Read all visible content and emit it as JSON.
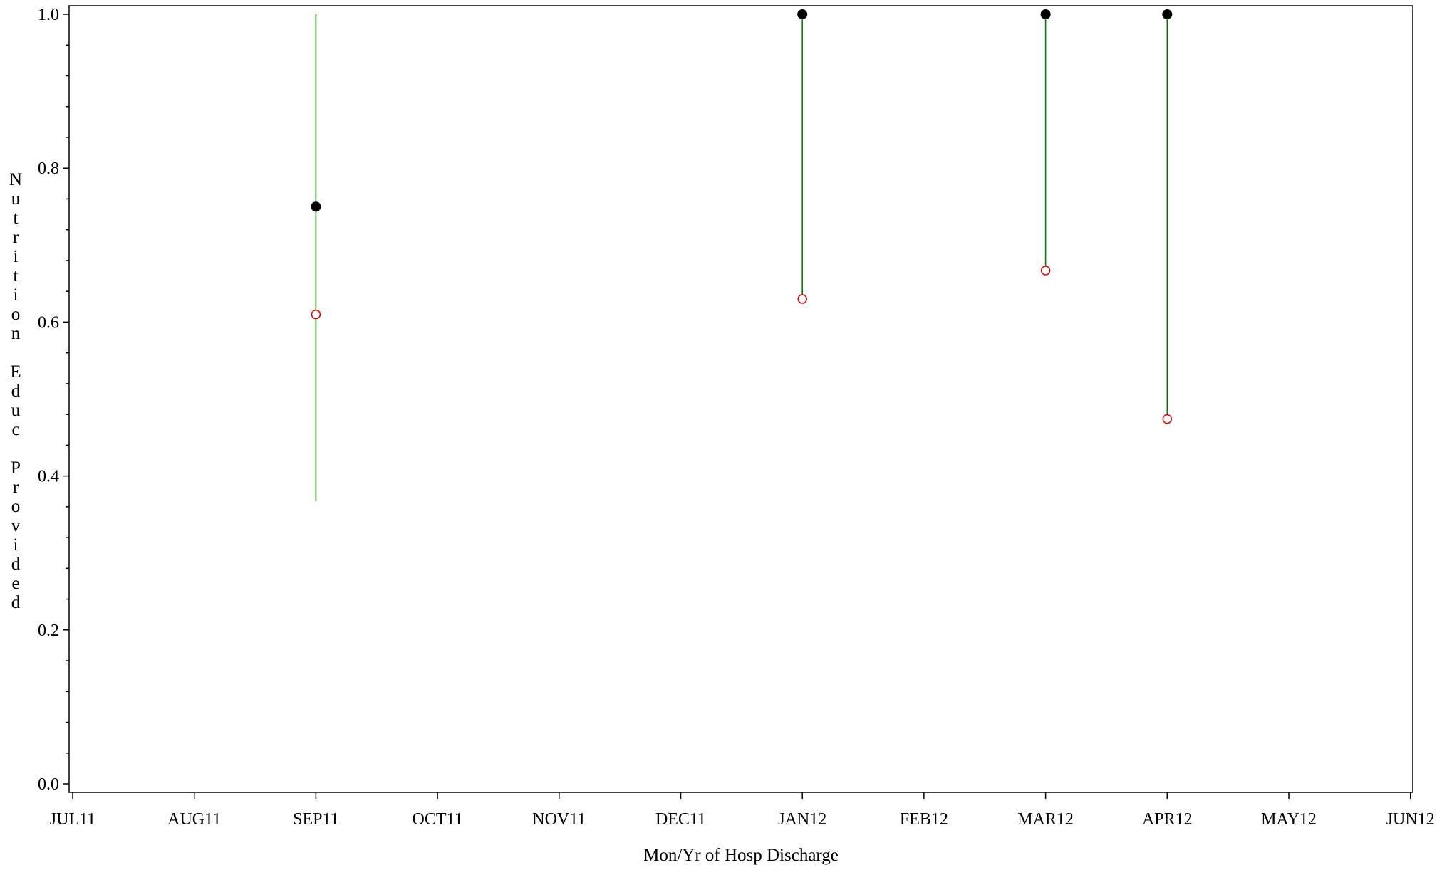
{
  "chart_data": {
    "type": "scatter",
    "title": "",
    "xlabel": "Mon/Yr of Hosp Discharge",
    "ylabel": "Nutrition Educ Provided",
    "x_categories": [
      "JUL11",
      "AUG11",
      "SEP11",
      "OCT11",
      "NOV11",
      "DEC11",
      "JAN12",
      "FEB12",
      "MAR12",
      "APR12",
      "MAY12",
      "JUN12"
    ],
    "ylim": [
      0.0,
      1.0
    ],
    "y_ticks": [
      0.0,
      0.2,
      0.4,
      0.6,
      0.8,
      1.0
    ],
    "y_tick_labels": [
      "0.0",
      "0.2",
      "0.4",
      "0.6",
      "0.8",
      "1.0"
    ],
    "grid": false,
    "legend": "none",
    "series": [
      {
        "marker": "filled-circle",
        "color": "#000000",
        "points": [
          {
            "x": "SEP11",
            "y": 0.75
          },
          {
            "x": "JAN12",
            "y": 1.0
          },
          {
            "x": "MAR12",
            "y": 1.0
          },
          {
            "x": "APR12",
            "y": 1.0
          }
        ]
      },
      {
        "marker": "open-circle",
        "color": "#e00000",
        "points": [
          {
            "x": "SEP11",
            "y": 0.61
          },
          {
            "x": "JAN12",
            "y": 0.63
          },
          {
            "x": "MAR12",
            "y": 0.667
          },
          {
            "x": "APR12",
            "y": 0.474
          }
        ]
      }
    ],
    "intervals": {
      "color": "#008000",
      "segments": [
        {
          "x": "SEP11",
          "low": 0.367,
          "high": 1.0
        },
        {
          "x": "JAN12",
          "low": 0.63,
          "high": 1.0
        },
        {
          "x": "MAR12",
          "low": 0.667,
          "high": 1.0
        },
        {
          "x": "APR12",
          "low": 0.474,
          "high": 1.0
        }
      ]
    }
  }
}
